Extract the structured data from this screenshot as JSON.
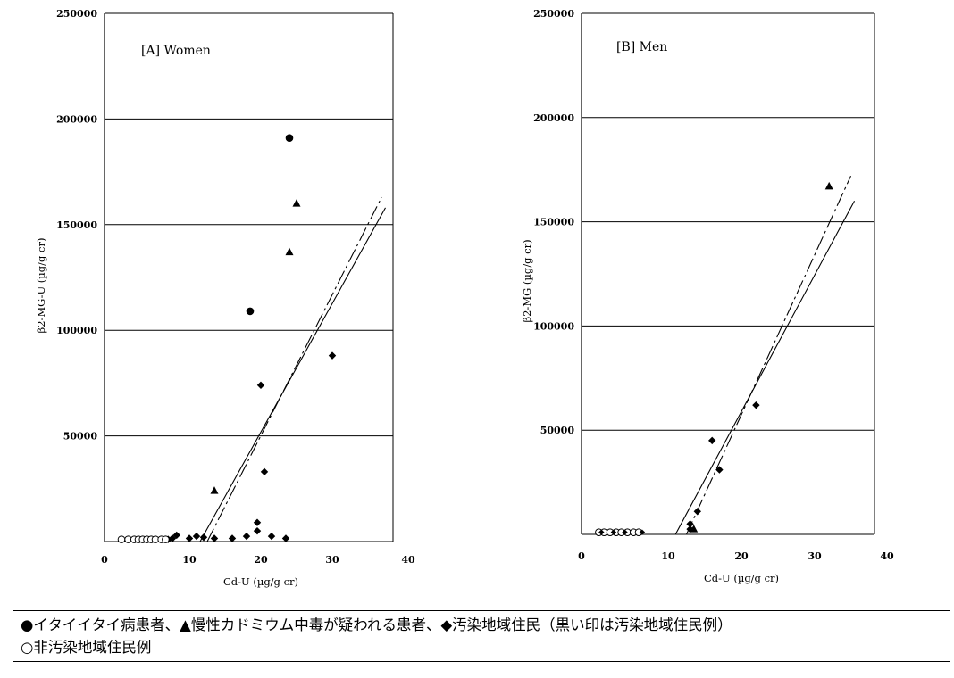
{
  "chart_data": [
    {
      "type": "scatter",
      "title": "[A]  Women",
      "xlabel": "Cd-U (µg/g cr)",
      "ylabel": "β2-MG-U (µg/g cr)",
      "xlim": [
        0,
        40
      ],
      "ylim": [
        0,
        250000
      ],
      "x_ticks": [
        0,
        10,
        20,
        30,
        40
      ],
      "y_ticks": [
        50000,
        100000,
        150000,
        200000,
        250000
      ],
      "grid": "horizontal",
      "series": [
        {
          "marker": "circle-filled",
          "points": [
            [
              24,
              191000
            ],
            [
              18.5,
              109000
            ]
          ]
        },
        {
          "marker": "triangle-filled",
          "points": [
            [
              25,
              160000
            ],
            [
              24,
              137000
            ],
            [
              13.5,
              24000
            ]
          ]
        },
        {
          "marker": "diamond-filled",
          "points": [
            [
              30,
              88000
            ],
            [
              20,
              74000
            ],
            [
              20.5,
              33000
            ],
            [
              19.5,
              9000
            ],
            [
              19.5,
              5000
            ],
            [
              23.5,
              1500
            ],
            [
              21.5,
              2500
            ],
            [
              18,
              2500
            ],
            [
              16,
              1500
            ],
            [
              13.5,
              1500
            ],
            [
              12,
              2000
            ],
            [
              11,
              2500
            ],
            [
              10,
              1500
            ],
            [
              8.5,
              3000
            ],
            [
              8,
              1500
            ],
            [
              7.5,
              1000
            ]
          ]
        },
        {
          "marker": "circle-open",
          "points": [
            [
              2,
              1000
            ],
            [
              2.8,
              1000
            ],
            [
              3.5,
              1000
            ],
            [
              4,
              1000
            ],
            [
              4.5,
              1000
            ],
            [
              5,
              1000
            ],
            [
              5.5,
              1000
            ],
            [
              6,
              1000
            ],
            [
              6.7,
              1000
            ],
            [
              7.2,
              1000
            ]
          ]
        }
      ],
      "lines": [
        {
          "style": "solid",
          "from": [
            11.5,
            0
          ],
          "to": [
            37,
            158000
          ]
        },
        {
          "style": "dashed",
          "from": [
            12.5,
            0
          ],
          "to": [
            36.5,
            163000
          ]
        }
      ]
    },
    {
      "type": "scatter",
      "title": "[B]  Men",
      "xlabel": "Cd-U (µg/g cr)",
      "ylabel": "β2-MG (µg/g cr)",
      "xlim": [
        0,
        40
      ],
      "ylim": [
        0,
        250000
      ],
      "x_ticks": [
        0,
        10,
        20,
        30,
        40
      ],
      "y_ticks": [
        50000,
        100000,
        150000,
        200000,
        250000
      ],
      "grid": "horizontal",
      "series": [
        {
          "marker": "triangle-filled",
          "points": [
            [
              32,
              167000
            ],
            [
              13.5,
              2500
            ]
          ]
        },
        {
          "marker": "diamond-filled",
          "points": [
            [
              22,
              62000
            ],
            [
              16,
              45000
            ],
            [
              17,
              31000
            ],
            [
              14,
              11000
            ],
            [
              13,
              5000
            ],
            [
              13,
              2500
            ]
          ]
        },
        {
          "marker": "circle-open",
          "points": [
            [
              2,
              1000
            ],
            [
              2.6,
              1000
            ],
            [
              3.3,
              1000
            ],
            [
              4,
              1000
            ],
            [
              4.6,
              1000
            ],
            [
              5.3,
              1000
            ],
            [
              6,
              1000
            ],
            [
              6.6,
              1000
            ]
          ]
        },
        {
          "marker": "diamond-filled-small",
          "points": [
            [
              2.3,
              1000
            ],
            [
              3.7,
              1000
            ],
            [
              5,
              1000
            ],
            [
              7,
              1000
            ]
          ]
        }
      ],
      "lines": [
        {
          "style": "solid",
          "from": [
            11,
            0
          ],
          "to": [
            35.5,
            160000
          ]
        },
        {
          "style": "dashed",
          "from": [
            12.5,
            0
          ],
          "to": [
            35,
            172000
          ]
        }
      ]
    }
  ],
  "legend": {
    "line1": "●イタイイタイ病患者、▲慢性カドミウム中毒が疑われる患者、◆汚染地域住民（黒い印は汚染地域住民例）",
    "line2": "○非汚染地域住民例"
  }
}
